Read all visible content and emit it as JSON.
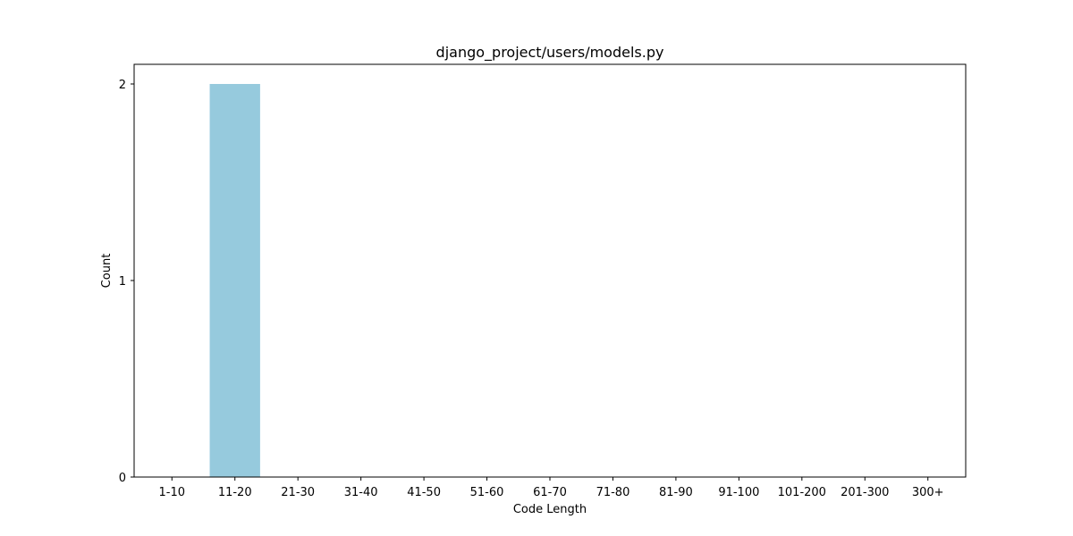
{
  "chart_data": {
    "type": "bar",
    "title": "django_project/users/models.py",
    "xlabel": "Code Length",
    "ylabel": "Count",
    "categories": [
      "1-10",
      "11-20",
      "21-30",
      "31-40",
      "41-50",
      "51-60",
      "61-70",
      "71-80",
      "81-90",
      "91-100",
      "101-200",
      "201-300",
      "300+"
    ],
    "values": [
      0,
      2,
      0,
      0,
      0,
      0,
      0,
      0,
      0,
      0,
      0,
      0,
      0
    ],
    "yticks": [
      0,
      1,
      2
    ],
    "ylim": [
      0,
      2.1
    ],
    "bar_color": "#96cadd",
    "grid": false
  }
}
